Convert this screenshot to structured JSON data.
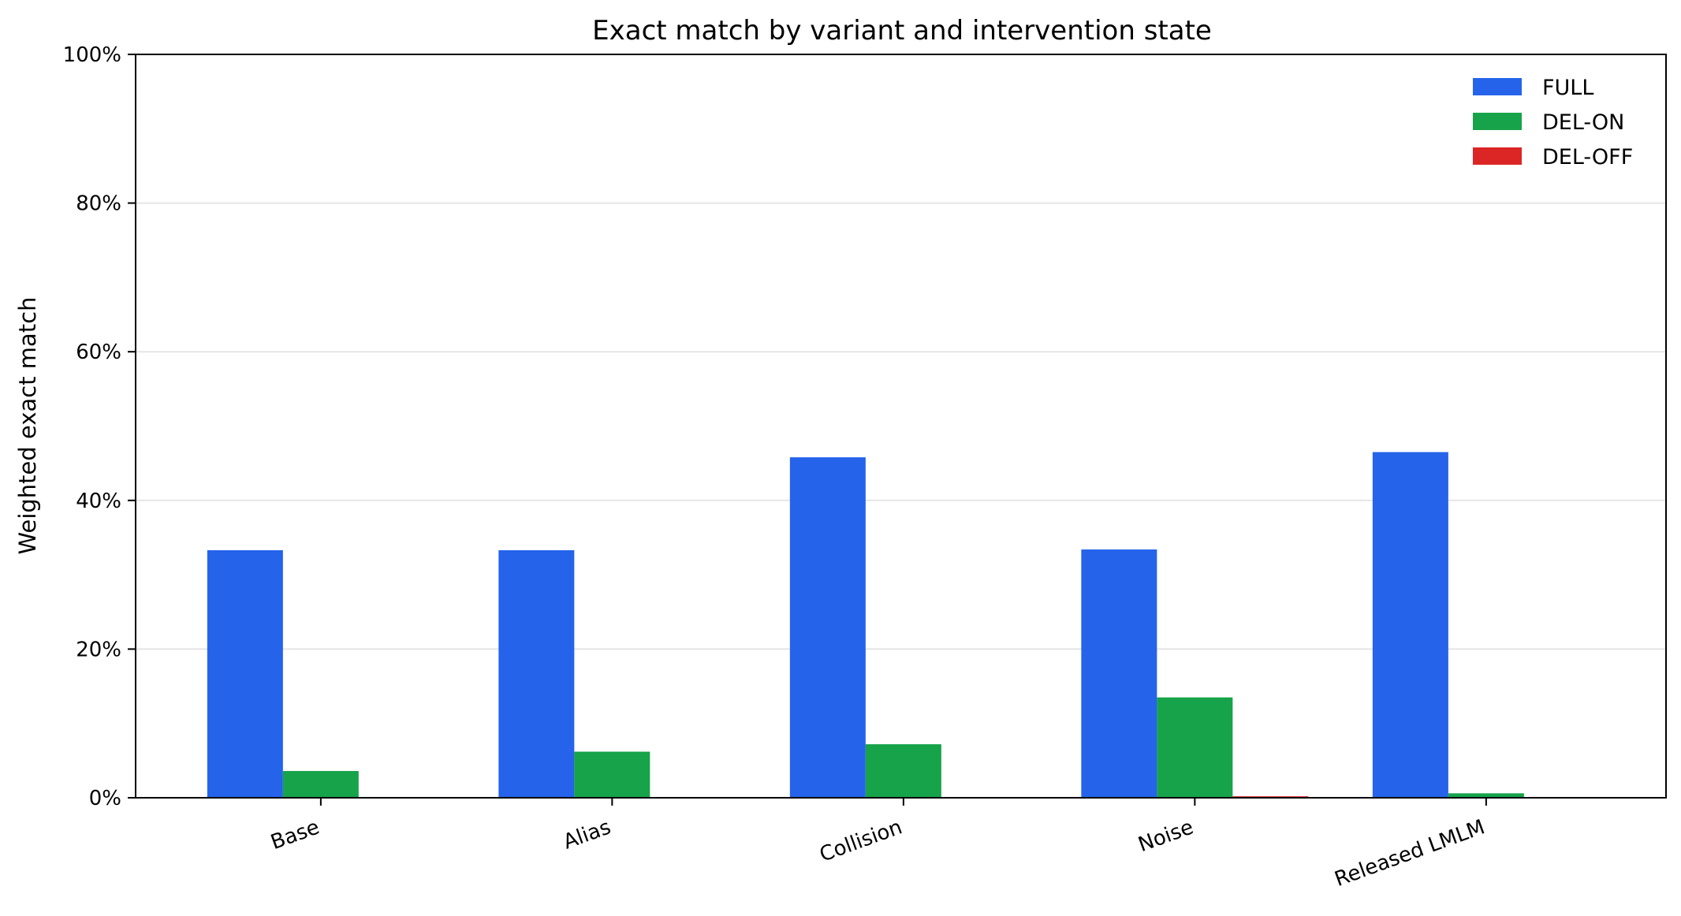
{
  "chart_data": {
    "type": "bar",
    "title": "Exact match by variant and intervention state",
    "xlabel": "",
    "ylabel": "Weighted exact match",
    "categories": [
      "Base",
      "Alias",
      "Collision",
      "Noise",
      "Released LMLM"
    ],
    "series": [
      {
        "name": "FULL",
        "color": "#2563eb",
        "values": [
          33.3,
          33.3,
          45.8,
          33.4,
          46.5
        ]
      },
      {
        "name": "DEL-ON",
        "color": "#16a34a",
        "values": [
          3.6,
          6.2,
          7.2,
          13.5,
          0.6
        ]
      },
      {
        "name": "DEL-OFF",
        "color": "#dc2626",
        "values": [
          0.0,
          0.0,
          0.0,
          0.2,
          0.0
        ]
      }
    ],
    "ylim": [
      0,
      100
    ],
    "yticks": [
      0,
      20,
      40,
      60,
      80,
      100
    ],
    "ytick_labels": [
      "0%",
      "20%",
      "40%",
      "60%",
      "80%",
      "100%"
    ],
    "grid": "horizontal",
    "legend_position": "top-right"
  }
}
